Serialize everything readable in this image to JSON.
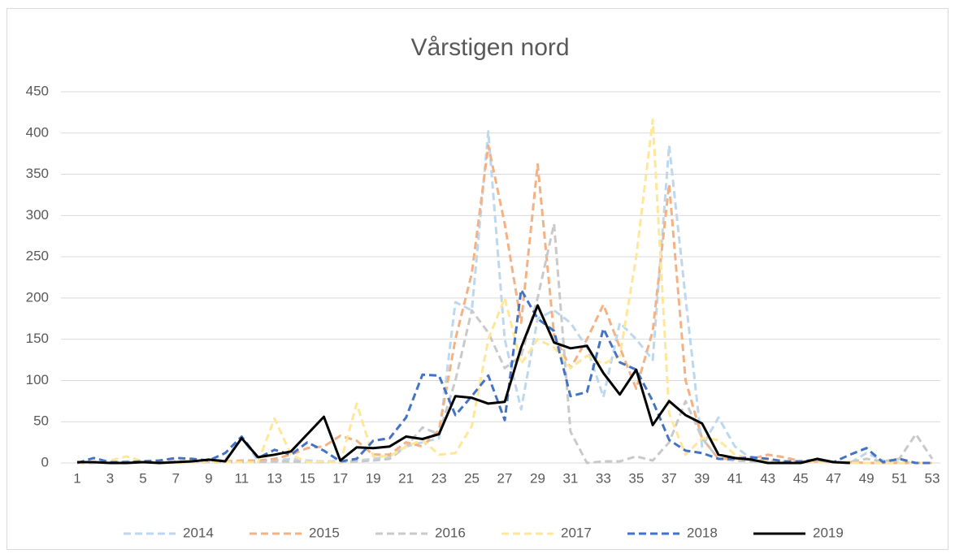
{
  "chart_data": {
    "type": "line",
    "title": "Vårstigen nord",
    "x": [
      1,
      2,
      3,
      4,
      5,
      6,
      7,
      8,
      9,
      10,
      11,
      12,
      13,
      14,
      15,
      16,
      17,
      18,
      19,
      20,
      21,
      22,
      23,
      24,
      25,
      26,
      27,
      28,
      29,
      30,
      31,
      32,
      33,
      34,
      35,
      36,
      37,
      38,
      39,
      40,
      41,
      42,
      43,
      44,
      45,
      46,
      47,
      48,
      49,
      50,
      51,
      52,
      53
    ],
    "xlim": [
      1,
      53
    ],
    "xticks": [
      1,
      3,
      5,
      7,
      9,
      11,
      13,
      15,
      17,
      19,
      21,
      23,
      25,
      27,
      29,
      31,
      33,
      35,
      37,
      39,
      41,
      43,
      45,
      47,
      49,
      51,
      53
    ],
    "ylim": [
      0,
      450
    ],
    "yticks": [
      0,
      50,
      100,
      150,
      200,
      250,
      300,
      350,
      400,
      450
    ],
    "grid": true,
    "legend": "bottom",
    "series": [
      {
        "name": "2014",
        "color": "#bdd7ee",
        "dashed": true,
        "values": [
          0,
          1,
          1,
          2,
          2,
          1,
          1,
          2,
          3,
          4,
          30,
          3,
          3,
          5,
          3,
          2,
          2,
          3,
          5,
          8,
          20,
          25,
          30,
          195,
          185,
          402,
          150,
          65,
          175,
          185,
          170,
          140,
          80,
          170,
          150,
          125,
          385,
          200,
          20,
          55,
          20,
          5,
          3,
          2,
          2,
          2,
          1,
          0,
          12,
          3,
          1,
          0,
          0
        ]
      },
      {
        "name": "2015",
        "color": "#f4b183",
        "dashed": true,
        "values": [
          0,
          0,
          1,
          1,
          1,
          1,
          2,
          2,
          2,
          2,
          3,
          3,
          5,
          10,
          18,
          20,
          33,
          27,
          10,
          10,
          25,
          20,
          40,
          150,
          230,
          385,
          290,
          170,
          362,
          155,
          115,
          150,
          192,
          140,
          90,
          160,
          338,
          100,
          30,
          5,
          5,
          5,
          10,
          7,
          2,
          2,
          1,
          1,
          0,
          0,
          0,
          0,
          0
        ]
      },
      {
        "name": "2016",
        "color": "#c9c9c9",
        "dashed": true,
        "values": [
          0,
          0,
          1,
          1,
          1,
          1,
          1,
          1,
          1,
          1,
          1,
          1,
          2,
          2,
          1,
          1,
          1,
          2,
          3,
          5,
          20,
          43,
          35,
          100,
          185,
          158,
          115,
          130,
          200,
          290,
          38,
          0,
          2,
          2,
          8,
          3,
          25,
          75,
          30,
          5,
          3,
          2,
          2,
          1,
          1,
          1,
          1,
          1,
          5,
          2,
          5,
          35,
          5
        ]
      },
      {
        "name": "2017",
        "color": "#ffe699",
        "dashed": true,
        "values": [
          0,
          1,
          3,
          8,
          2,
          1,
          0,
          1,
          2,
          1,
          1,
          1,
          54,
          10,
          1,
          2,
          0,
          72,
          8,
          8,
          20,
          28,
          10,
          12,
          45,
          150,
          200,
          120,
          150,
          140,
          115,
          130,
          120,
          130,
          250,
          416,
          60,
          10,
          30,
          28,
          10,
          5,
          3,
          2,
          2,
          1,
          1,
          0,
          0,
          0,
          0,
          0,
          0
        ]
      },
      {
        "name": "2018",
        "color": "#4472c4",
        "dashed": true,
        "values": [
          0,
          6,
          1,
          1,
          2,
          3,
          6,
          5,
          3,
          12,
          32,
          6,
          16,
          10,
          25,
          15,
          2,
          5,
          27,
          30,
          55,
          107,
          106,
          58,
          81,
          106,
          52,
          210,
          175,
          160,
          81,
          86,
          163,
          122,
          113,
          75,
          28,
          15,
          12,
          5,
          5,
          7,
          5,
          2,
          2,
          4,
          1,
          10,
          18,
          1,
          5,
          0,
          0
        ]
      },
      {
        "name": "2019",
        "color": "#000000",
        "dashed": false,
        "values": [
          1,
          1,
          0,
          0,
          1,
          0,
          1,
          2,
          4,
          2,
          30,
          7,
          10,
          14,
          35,
          56,
          3,
          19,
          18,
          20,
          32,
          29,
          35,
          81,
          79,
          72,
          74,
          140,
          191,
          146,
          139,
          142,
          109,
          83,
          113,
          46,
          75,
          58,
          48,
          10,
          6,
          4,
          0,
          0,
          0,
          5,
          1,
          0,
          null,
          null,
          null,
          null,
          null
        ]
      }
    ]
  }
}
